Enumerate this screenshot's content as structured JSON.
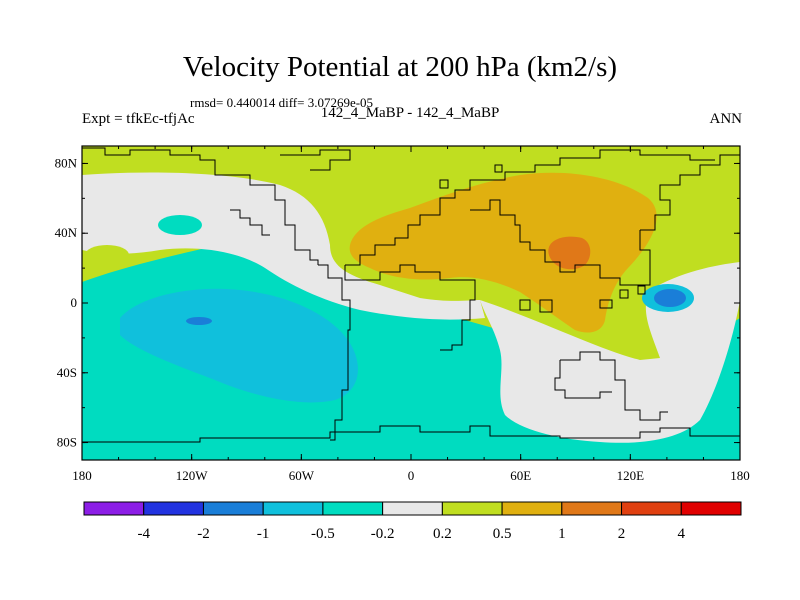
{
  "figure": {
    "title": "Velocity Potential at 200 hPa (km2/s)",
    "stats": "rmsd= 0.440014 diff= 3.07269e-05",
    "left_label": "Expt = tfkEc-tfjAc",
    "center_label": "142_4_MaBP - 142_4_MaBP",
    "right_label": "ANN"
  },
  "axes": {
    "lon_ticks": [
      "180",
      "120W",
      "60W",
      "0",
      "60E",
      "120E",
      "180"
    ],
    "lat_ticks": [
      "80N",
      "40N",
      "0",
      "40S",
      "80S"
    ]
  },
  "colorbar": {
    "labels": [
      "-4",
      "-2",
      "-1",
      "-0.5",
      "-0.2",
      "0.2",
      "0.5",
      "1",
      "2",
      "4"
    ],
    "colors": [
      "#8c1ee6",
      "#2233e0",
      "#1a7ed8",
      "#10c0dc",
      "#00dcc0",
      "#e8e8e8",
      "#c0de20",
      "#e0b010",
      "#e07818",
      "#e04010",
      "#e00000"
    ]
  },
  "colors": {
    "green": "#c0de20",
    "white": "#e8e8e8",
    "teal": "#00dcc0",
    "cyan": "#10c0dc",
    "blue": "#1a7ed8",
    "gold": "#e0b010",
    "orange": "#e07818"
  }
}
